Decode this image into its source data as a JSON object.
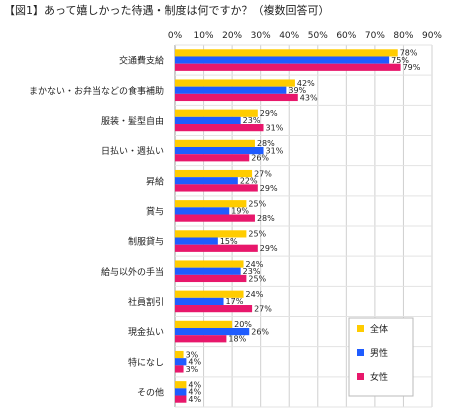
{
  "chart_data": {
    "type": "bar",
    "orientation": "horizontal",
    "title": "【図1】あって嬉しかった待遇・制度は何ですか？（複数回答可）",
    "categories": [
      "交通費支給",
      "まかない・お弁当などの食事補助",
      "服装・髪型自由",
      "日払い・週払い",
      "昇給",
      "賞与",
      "制服貸与",
      "給与以外の手当",
      "社員割引",
      "現金払い",
      "特になし",
      "その他"
    ],
    "series": [
      {
        "name": "全体",
        "color": "#ffcc00",
        "values": [
          78,
          42,
          29,
          28,
          27,
          25,
          25,
          24,
          24,
          20,
          3,
          4
        ]
      },
      {
        "name": "男性",
        "color": "#1f5cff",
        "values": [
          75,
          39,
          23,
          31,
          22,
          19,
          15,
          23,
          17,
          26,
          4,
          4
        ]
      },
      {
        "name": "女性",
        "color": "#e8176b",
        "values": [
          79,
          43,
          31,
          26,
          29,
          28,
          29,
          25,
          27,
          18,
          3,
          4
        ]
      }
    ],
    "xlim": [
      0,
      90
    ],
    "x_ticks": [
      "0%",
      "10%",
      "20%",
      "30%",
      "40%",
      "50%",
      "60%",
      "70%",
      "80%",
      "90%"
    ],
    "value_suffix": "%",
    "grid": true,
    "legend_position": "bottom-right"
  }
}
